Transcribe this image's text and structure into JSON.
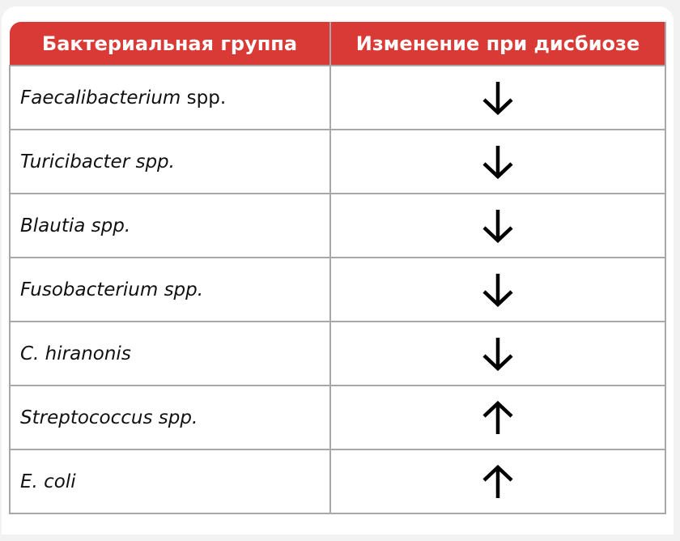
{
  "header": {
    "col1": "Бактериальная группа",
    "col2": "Изменение при дисбиозе"
  },
  "rows": [
    {
      "genus": "Faecalibacterium",
      "suffix": " spp.",
      "change": "down"
    },
    {
      "genus": "Turicibacter spp.",
      "suffix": "",
      "change": "down"
    },
    {
      "genus": "Blautia spp.",
      "suffix": "",
      "change": "down"
    },
    {
      "genus": "Fusobacterium spp.",
      "suffix": "",
      "change": "down"
    },
    {
      "genus": "C. hiranonis",
      "suffix": "",
      "change": "down"
    },
    {
      "genus": "Streptococcus spp.",
      "suffix": "",
      "change": "up"
    },
    {
      "genus": "E. coli",
      "suffix": "",
      "change": "up"
    }
  ],
  "colors": {
    "header_bg": "#d93a35",
    "border": "#a8a8a8"
  }
}
